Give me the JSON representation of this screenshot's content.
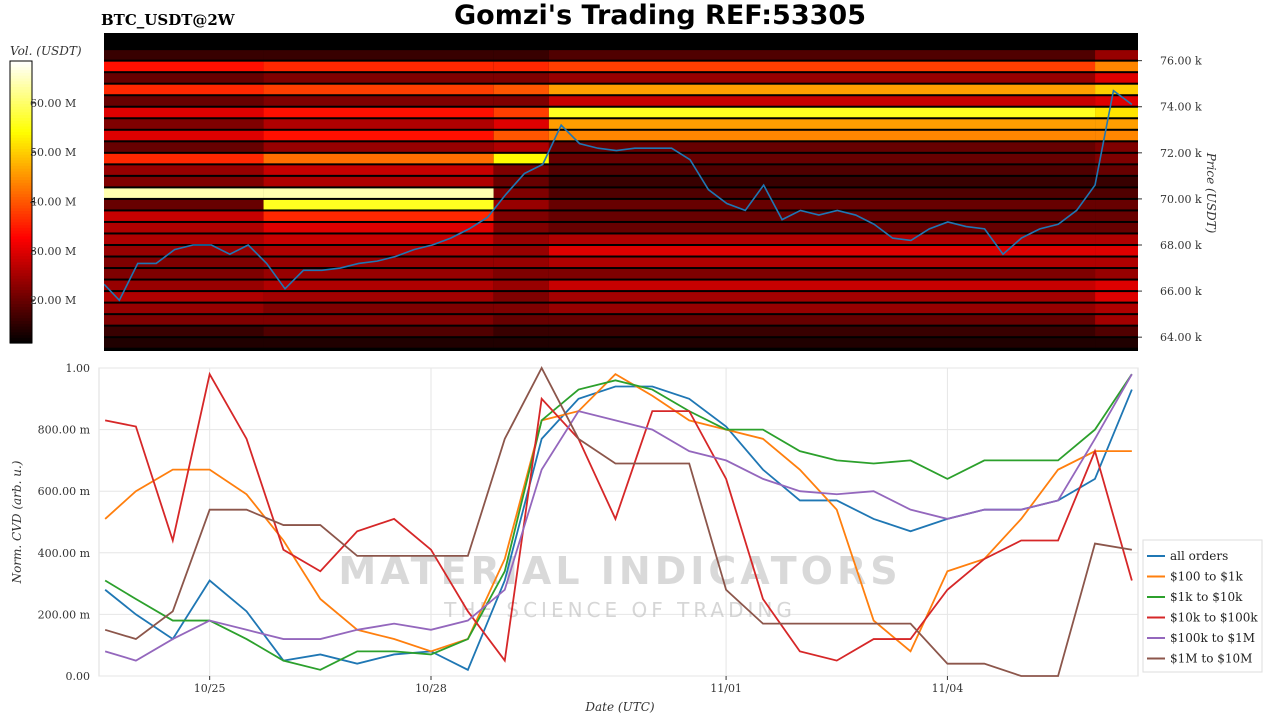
{
  "chart_data": [
    {
      "type": "heatmap",
      "title": "Gomzi's Trading REF:53305",
      "subtitle": "BTC_USDT@2W",
      "colorbar_label": "Vol. (USDT)",
      "y_label": "Price (USDT)",
      "colormap": "hot",
      "clim": [
        11.3,
        68.5
      ],
      "cticks": [
        {
          "value": 20,
          "label": "20.00 M"
        },
        {
          "value": 30,
          "label": "30.00 M"
        },
        {
          "value": 40,
          "label": "40.00 M"
        },
        {
          "value": 50,
          "label": "50.00 M"
        },
        {
          "value": 60,
          "label": "60.00 M"
        }
      ],
      "xlim": [
        "10/23 13:00",
        "11/06 14:00"
      ],
      "ylim": [
        63.4,
        77.2
      ],
      "yticks": [
        {
          "value": 64,
          "label": "64.00 k"
        },
        {
          "value": 66,
          "label": "66.00 k"
        },
        {
          "value": 68,
          "label": "68.00 k"
        },
        {
          "value": 70,
          "label": "70.00 k"
        },
        {
          "value": 72,
          "label": "72.00 k"
        },
        {
          "value": 74,
          "label": "74.00 k"
        },
        {
          "value": 76,
          "label": "76.00 k"
        }
      ],
      "x_bins": [
        "10/23 13:00",
        "10/25 17:00",
        "10/28 20:00",
        "10/29 14:00",
        "11/06 00:00",
        "11/06 14:00"
      ],
      "y_bins": [
        63.5,
        64,
        64.5,
        65,
        65.5,
        66,
        66.5,
        67,
        67.5,
        68,
        68.5,
        69,
        69.5,
        70,
        70.5,
        71,
        71.5,
        72,
        72.5,
        73,
        73.5,
        74,
        74.5,
        75,
        75.5,
        76,
        76.5
      ],
      "values": [
        [
          14,
          14,
          14,
          14,
          14
        ],
        [
          16,
          18,
          16,
          16,
          18
        ],
        [
          22,
          22,
          20,
          20,
          25
        ],
        [
          24,
          22,
          22,
          24,
          26
        ],
        [
          26,
          25,
          22,
          25,
          30
        ],
        [
          24,
          26,
          24,
          28,
          30
        ],
        [
          22,
          24,
          22,
          22,
          24
        ],
        [
          22,
          24,
          24,
          26,
          26
        ],
        [
          24,
          26,
          24,
          30,
          30
        ],
        [
          26,
          28,
          24,
          26,
          26
        ],
        [
          26,
          30,
          22,
          20,
          20
        ],
        [
          28,
          36,
          22,
          20,
          20
        ],
        [
          20,
          56,
          24,
          20,
          20
        ],
        [
          64,
          64,
          22,
          18,
          18
        ],
        [
          22,
          26,
          20,
          16,
          16
        ],
        [
          24,
          28,
          22,
          18,
          20
        ],
        [
          36,
          42,
          54,
          20,
          22
        ],
        [
          20,
          24,
          26,
          20,
          22
        ],
        [
          30,
          34,
          40,
          44,
          44
        ],
        [
          22,
          26,
          30,
          46,
          46
        ],
        [
          30,
          34,
          38,
          56,
          52
        ],
        [
          20,
          22,
          22,
          28,
          30
        ],
        [
          36,
          38,
          40,
          46,
          50
        ],
        [
          20,
          22,
          22,
          24,
          30
        ],
        [
          34,
          36,
          36,
          38,
          44
        ],
        [
          16,
          16,
          16,
          18,
          24
        ]
      ],
      "line": {
        "color": "#1f77b4",
        "x": [
          "10/23 13:00",
          "10/23 18:00",
          "10/24 00:00",
          "10/24 06:00",
          "10/24 12:00",
          "10/24 18:00",
          "10/25 00:00",
          "10/25 06:00",
          "10/25 12:00",
          "10/25 18:00",
          "10/26 00:00",
          "10/26 06:00",
          "10/26 12:00",
          "10/26 18:00",
          "10/27 00:00",
          "10/27 06:00",
          "10/27 12:00",
          "10/27 18:00",
          "10/28 00:00",
          "10/28 06:00",
          "10/28 12:00",
          "10/28 18:00",
          "10/29 00:00",
          "10/29 06:00",
          "10/29 12:00",
          "10/29 18:00",
          "10/30 00:00",
          "10/30 06:00",
          "10/30 12:00",
          "10/30 18:00",
          "10/31 00:00",
          "10/31 06:00",
          "10/31 12:00",
          "10/31 18:00",
          "11/01 00:00",
          "11/01 06:00",
          "11/01 12:00",
          "11/01 18:00",
          "11/02 00:00",
          "11/02 06:00",
          "11/02 12:00",
          "11/02 18:00",
          "11/03 00:00",
          "11/03 06:00",
          "11/03 12:00",
          "11/03 18:00",
          "11/04 00:00",
          "11/04 06:00",
          "11/04 12:00",
          "11/04 18:00",
          "11/05 00:00",
          "11/05 06:00",
          "11/05 12:00",
          "11/05 18:00",
          "11/06 00:00",
          "11/06 06:00",
          "11/06 12:00"
        ],
        "values": [
          66.3,
          65.6,
          67.2,
          67.2,
          67.8,
          68.0,
          68.0,
          67.6,
          68.0,
          67.2,
          66.1,
          66.9,
          66.9,
          67.0,
          67.2,
          67.3,
          67.5,
          67.8,
          68.0,
          68.3,
          68.7,
          69.2,
          70.2,
          71.1,
          71.5,
          73.2,
          72.4,
          72.2,
          72.1,
          72.2,
          72.2,
          72.2,
          71.7,
          70.4,
          69.8,
          69.5,
          70.6,
          69.1,
          69.5,
          69.3,
          69.5,
          69.3,
          68.9,
          68.3,
          68.2,
          68.7,
          69.0,
          68.8,
          68.7,
          67.6,
          68.3,
          68.7,
          68.9,
          69.5,
          70.6,
          74.7,
          74.1
        ]
      }
    },
    {
      "type": "line",
      "y_label": "Norm. CVD (arb. u.)",
      "x_label": "Date (UTC)",
      "grid": true,
      "legend": "lower-right",
      "annotations": [
        "MATERIAL INDICATORS",
        "THE SCIENCE OF TRADING"
      ],
      "xlim": [
        "10/23 12:00",
        "11/06 14:00"
      ],
      "xticks": [
        "10/25",
        "10/28",
        "11/01",
        "11/04"
      ],
      "ylim": [
        0,
        1
      ],
      "yticks": [
        {
          "value": 0,
          "label": "0.00"
        },
        {
          "value": 0.2,
          "label": "200.00 m"
        },
        {
          "value": 0.4,
          "label": "400.00 m"
        },
        {
          "value": 0.6,
          "label": "600.00 m"
        },
        {
          "value": 0.8,
          "label": "800.00 m"
        },
        {
          "value": 1,
          "label": "1.00"
        }
      ],
      "x": [
        "10/23 14:00",
        "10/24 00:00",
        "10/24 12:00",
        "10/25 00:00",
        "10/25 12:00",
        "10/26 00:00",
        "10/26 12:00",
        "10/27 00:00",
        "10/27 12:00",
        "10/28 00:00",
        "10/28 12:00",
        "10/29 00:00",
        "10/29 12:00",
        "10/30 00:00",
        "10/30 12:00",
        "10/31 00:00",
        "10/31 12:00",
        "11/01 00:00",
        "11/01 12:00",
        "11/02 00:00",
        "11/02 12:00",
        "11/03 00:00",
        "11/03 12:00",
        "11/04 00:00",
        "11/04 12:00",
        "11/05 00:00",
        "11/05 12:00",
        "11/06 00:00",
        "11/06 12:00"
      ],
      "series": [
        {
          "name": "all orders",
          "color": "#1f77b4",
          "values": [
            0.28,
            0.2,
            0.12,
            0.31,
            0.21,
            0.05,
            0.07,
            0.04,
            0.07,
            0.08,
            0.02,
            0.31,
            0.77,
            0.9,
            0.94,
            0.94,
            0.9,
            0.81,
            0.67,
            0.57,
            0.57,
            0.51,
            0.47,
            0.51,
            0.54,
            0.54,
            0.57,
            0.64,
            0.93
          ]
        },
        {
          "name": "$100 to $1k",
          "color": "#ff7f0e",
          "values": [
            0.51,
            0.6,
            0.67,
            0.67,
            0.59,
            0.44,
            0.25,
            0.15,
            0.12,
            0.08,
            0.12,
            0.38,
            0.83,
            0.86,
            0.98,
            0.91,
            0.83,
            0.8,
            0.77,
            0.67,
            0.54,
            0.18,
            0.08,
            0.34,
            0.38,
            0.51,
            0.67,
            0.73,
            0.73
          ]
        },
        {
          "name": "$1k to $10k",
          "color": "#2ca02c",
          "values": [
            0.31,
            0.25,
            0.18,
            0.18,
            0.12,
            0.05,
            0.02,
            0.08,
            0.08,
            0.07,
            0.12,
            0.34,
            0.83,
            0.93,
            0.96,
            0.93,
            0.86,
            0.8,
            0.8,
            0.73,
            0.7,
            0.69,
            0.7,
            0.64,
            0.7,
            0.7,
            0.7,
            0.8,
            0.98
          ]
        },
        {
          "name": "$10k to $100k",
          "color": "#d62728",
          "values": [
            0.83,
            0.81,
            0.44,
            0.98,
            0.77,
            0.41,
            0.34,
            0.47,
            0.51,
            0.41,
            0.21,
            0.05,
            0.9,
            0.77,
            0.51,
            0.86,
            0.86,
            0.64,
            0.25,
            0.08,
            0.05,
            0.12,
            0.12,
            0.28,
            0.38,
            0.44,
            0.44,
            0.73,
            0.31
          ]
        },
        {
          "name": "$100k to $1M",
          "color": "#9467bd",
          "values": [
            0.08,
            0.05,
            0.12,
            0.18,
            0.15,
            0.12,
            0.12,
            0.15,
            0.17,
            0.15,
            0.18,
            0.28,
            0.67,
            0.86,
            0.83,
            0.8,
            0.73,
            0.7,
            0.64,
            0.6,
            0.59,
            0.6,
            0.54,
            0.51,
            0.54,
            0.54,
            0.57,
            0.77,
            0.98
          ]
        },
        {
          "name": "$1M to $10M",
          "color": "#8c564b",
          "values": [
            0.15,
            0.12,
            0.21,
            0.54,
            0.54,
            0.49,
            0.49,
            0.39,
            0.39,
            0.39,
            0.39,
            0.77,
            1.0,
            0.77,
            0.69,
            0.69,
            0.69,
            0.28,
            0.17,
            0.17,
            0.17,
            0.17,
            0.17,
            0.04,
            0.04,
            0.0,
            0.0,
            0.43,
            0.41
          ]
        }
      ]
    }
  ]
}
